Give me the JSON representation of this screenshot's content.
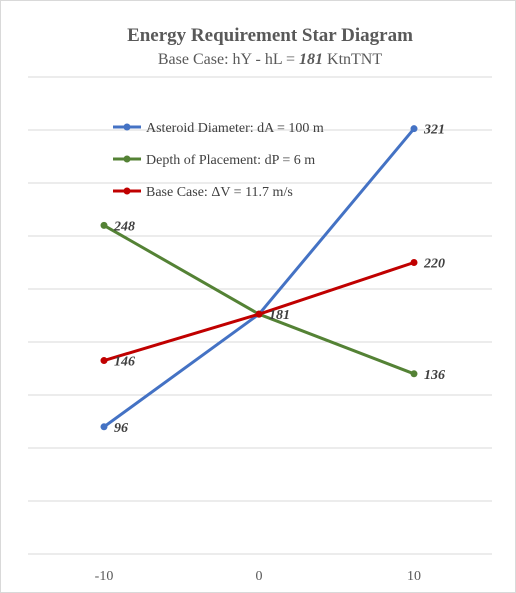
{
  "chart_data": {
    "type": "line",
    "title": "Energy Requirement Star Diagram",
    "subtitle_prefix": "Base Case: hY - hL = ",
    "subtitle_value": "181",
    "subtitle_suffix": " KtnTNT",
    "x": [
      -10,
      0,
      10
    ],
    "x_tick_labels": [
      "-10",
      "0",
      "10"
    ],
    "ylim": [
      0,
      360
    ],
    "y_gridlines": [
      0,
      40,
      80,
      120,
      160,
      200,
      240,
      280,
      320,
      360
    ],
    "grid": true,
    "legend_position": "top-left inside plot",
    "series": [
      {
        "name": "Asteroid Diameter: dA = 100 m",
        "color": "#4472c4",
        "values": [
          96,
          181,
          321
        ],
        "labels": [
          "96",
          "181",
          "321"
        ]
      },
      {
        "name": "Depth of Placement: dP = 6 m",
        "color": "#548235",
        "values": [
          248,
          181,
          136
        ],
        "labels": [
          "248",
          "",
          "136"
        ]
      },
      {
        "name": "Base Case: ΔV = 11.7 m/s",
        "color": "#c00000",
        "values": [
          146,
          181,
          220
        ],
        "labels": [
          "146",
          "",
          "220"
        ]
      }
    ]
  }
}
